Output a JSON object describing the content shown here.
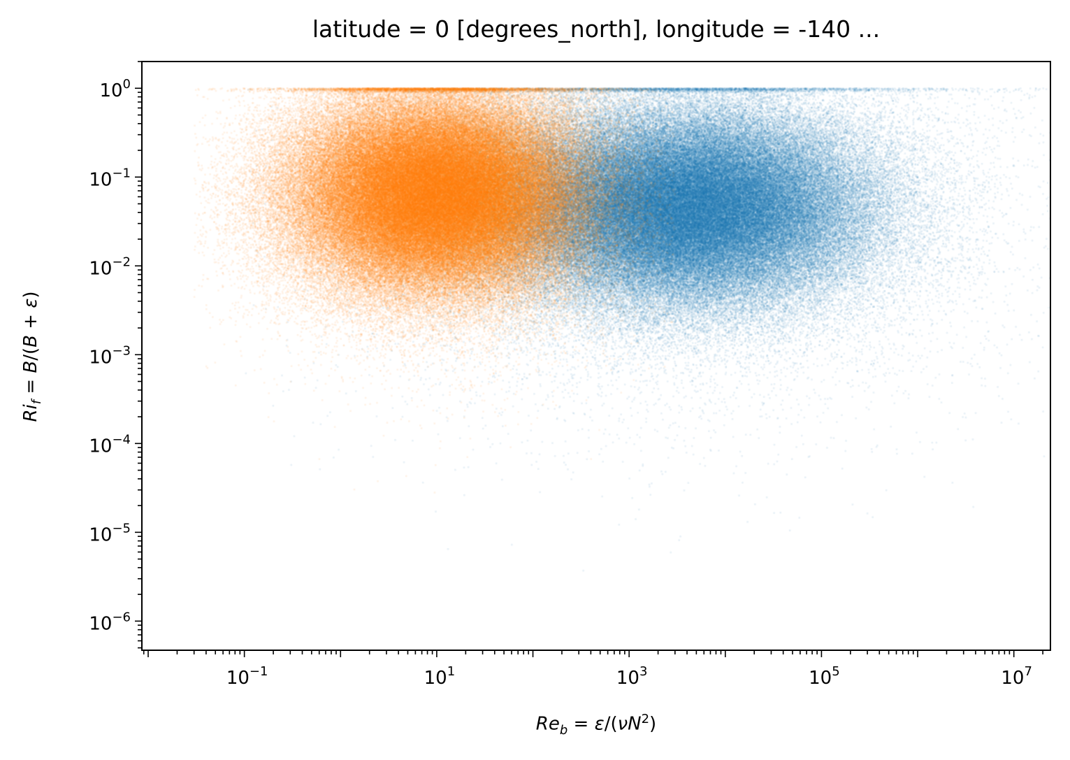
{
  "chart_data": {
    "type": "scatter",
    "title": "latitude = 0 [degrees_north], longitude = -140 ...",
    "xlabel": "Re_b = ε/(νN²)",
    "ylabel": "Ri_f = B/(B + ε)",
    "xscale": "log",
    "yscale": "log",
    "xlim": [
      0.0086,
      24000000
    ],
    "ylim": [
      4.7e-07,
      2.0
    ],
    "grid": false,
    "legend": "none",
    "x_tick_labels": [
      {
        "base": "10",
        "exp": "−1",
        "value": 0.1
      },
      {
        "base": "10",
        "exp": "1",
        "value": 10
      },
      {
        "base": "10",
        "exp": "3",
        "value": 1000
      },
      {
        "base": "10",
        "exp": "5",
        "value": 100000
      },
      {
        "base": "10",
        "exp": "7",
        "value": 10000000
      }
    ],
    "y_tick_labels": [
      {
        "base": "10",
        "exp": "0",
        "value": 1
      },
      {
        "base": "10",
        "exp": "−1",
        "value": 0.1
      },
      {
        "base": "10",
        "exp": "−2",
        "value": 0.01
      },
      {
        "base": "10",
        "exp": "−3",
        "value": 0.001
      },
      {
        "base": "10",
        "exp": "−4",
        "value": 0.0001
      },
      {
        "base": "10",
        "exp": "−5",
        "value": 1e-05
      },
      {
        "base": "10",
        "exp": "−6",
        "value": 1e-06
      }
    ],
    "series": [
      {
        "color": "#1f77b4",
        "alpha": 0.1,
        "point_count_approx": "very large (dense cloud)",
        "core_region": {
          "x_range": [
            1000,
            100000
          ],
          "y_range": [
            0.003,
            0.9
          ]
        },
        "full_extent": {
          "x_range": [
            0.1,
            70000000
          ],
          "y_range": [
            9e-07,
            1.0
          ]
        }
      },
      {
        "color": "#ff7f0e",
        "alpha": 0.1,
        "point_count_approx": "very large (dense cloud)",
        "core_region": {
          "x_range": [
            0.4,
            300
          ],
          "y_range": [
            0.001,
            1.0
          ]
        },
        "full_extent": {
          "x_range": [
            0.03,
            3000
          ],
          "y_range": [
            5e-06,
            1.0
          ]
        }
      }
    ]
  }
}
